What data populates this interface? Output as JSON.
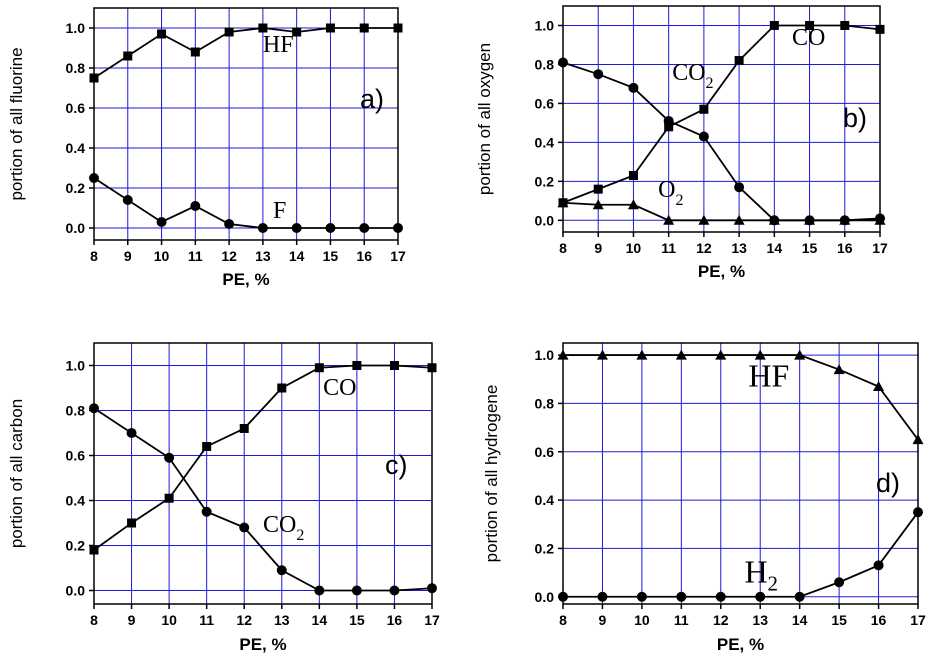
{
  "chart_data": [
    {
      "type": "line",
      "panel_label": "a)",
      "xlabel": "PE, %",
      "ylabel": "portion of all fluorine",
      "x": [
        8,
        9,
        10,
        11,
        12,
        13,
        14,
        15,
        16,
        17
      ],
      "xlim": [
        8,
        17
      ],
      "ylim": [
        -0.06,
        1.1
      ],
      "yticks": [
        "0.0",
        "0.2",
        "0.4",
        "0.6",
        "0.8",
        "1.0"
      ],
      "grid": true,
      "grid_color": "#1a1adc",
      "series": [
        {
          "name": "HF",
          "marker": "square",
          "values": [
            0.75,
            0.86,
            0.97,
            0.88,
            0.98,
            1.0,
            0.98,
            1.0,
            1.0,
            1.0
          ]
        },
        {
          "name": "F",
          "marker": "circle",
          "values": [
            0.25,
            0.14,
            0.03,
            0.11,
            0.02,
            0.0,
            0.0,
            0.0,
            0.0,
            0.0
          ]
        }
      ],
      "annotations": [
        {
          "text": "HF",
          "x": 13.0,
          "y": 0.88
        },
        {
          "text": "F",
          "x": 13.3,
          "y": 0.05
        }
      ]
    },
    {
      "type": "line",
      "panel_label": "b)",
      "xlabel": "PE, %",
      "ylabel": "portion of all oxygen",
      "x": [
        8,
        9,
        10,
        11,
        12,
        13,
        14,
        15,
        16,
        17
      ],
      "xlim": [
        8,
        17
      ],
      "ylim": [
        -0.06,
        1.1
      ],
      "yticks": [
        "0.0",
        "0.2",
        "0.4",
        "0.6",
        "0.8",
        "1.0"
      ],
      "grid": true,
      "grid_color": "#1a1adc",
      "series": [
        {
          "name": "CO",
          "marker": "square",
          "values": [
            0.09,
            0.16,
            0.23,
            0.48,
            0.57,
            0.82,
            1.0,
            1.0,
            1.0,
            0.98
          ]
        },
        {
          "name": "CO2",
          "marker": "circle",
          "values": [
            0.81,
            0.75,
            0.68,
            0.51,
            0.43,
            0.17,
            0.0,
            0.0,
            0.0,
            0.01
          ]
        },
        {
          "name": "O2",
          "marker": "triangle",
          "values": [
            0.09,
            0.08,
            0.08,
            0.0,
            0.0,
            0.0,
            0.0,
            0.0,
            0.0,
            0.0
          ]
        }
      ],
      "annotations": [
        {
          "text": "CO",
          "sub": "2",
          "x": 11.1,
          "y": 0.72
        },
        {
          "text": "CO",
          "sub": "",
          "x": 14.5,
          "y": 0.9
        },
        {
          "text": "O",
          "sub": "2",
          "x": 10.7,
          "y": 0.12
        }
      ]
    },
    {
      "type": "line",
      "panel_label": "c)",
      "xlabel": "PE, %",
      "ylabel": "portion of all carbon",
      "x": [
        8,
        9,
        10,
        11,
        12,
        13,
        14,
        15,
        16,
        17
      ],
      "xlim": [
        8,
        17
      ],
      "ylim": [
        -0.06,
        1.1
      ],
      "yticks": [
        "0.0",
        "0.2",
        "0.4",
        "0.6",
        "0.8",
        "1.0"
      ],
      "grid": true,
      "grid_color": "#1a1adc",
      "series": [
        {
          "name": "CO",
          "marker": "square",
          "values": [
            0.18,
            0.3,
            0.41,
            0.64,
            0.72,
            0.9,
            0.99,
            1.0,
            1.0,
            0.99
          ]
        },
        {
          "name": "CO2",
          "marker": "circle",
          "values": [
            0.81,
            0.7,
            0.59,
            0.35,
            0.28,
            0.09,
            0.0,
            0.0,
            0.0,
            0.01
          ]
        }
      ],
      "annotations": [
        {
          "text": "CO",
          "sub": "",
          "x": 14.1,
          "y": 0.87
        },
        {
          "text": "CO",
          "sub": "2",
          "x": 12.5,
          "y": 0.26
        }
      ]
    },
    {
      "type": "line",
      "panel_label": "d)",
      "xlabel": "PE, %",
      "ylabel": "portion of all hydrogene",
      "x": [
        8,
        9,
        10,
        11,
        12,
        13,
        14,
        15,
        16,
        17
      ],
      "xlim": [
        8,
        17
      ],
      "ylim": [
        -0.03,
        1.05
      ],
      "yticks": [
        "0.0",
        "0.2",
        "0.4",
        "0.6",
        "0.8",
        "1.0"
      ],
      "grid": true,
      "grid_color": "#1a1adc",
      "series": [
        {
          "name": "HF",
          "marker": "triangle",
          "values": [
            1.0,
            1.0,
            1.0,
            1.0,
            1.0,
            1.0,
            1.0,
            0.94,
            0.87,
            0.65
          ]
        },
        {
          "name": "H2",
          "marker": "circle",
          "values": [
            0.0,
            0.0,
            0.0,
            0.0,
            0.0,
            0.0,
            0.0,
            0.06,
            0.13,
            0.35
          ]
        }
      ],
      "annotations": [
        {
          "text": "HF",
          "sub": "",
          "x": 12.7,
          "y": 0.87
        },
        {
          "text": "H",
          "sub": "2",
          "x": 12.6,
          "y": 0.06
        }
      ]
    }
  ]
}
